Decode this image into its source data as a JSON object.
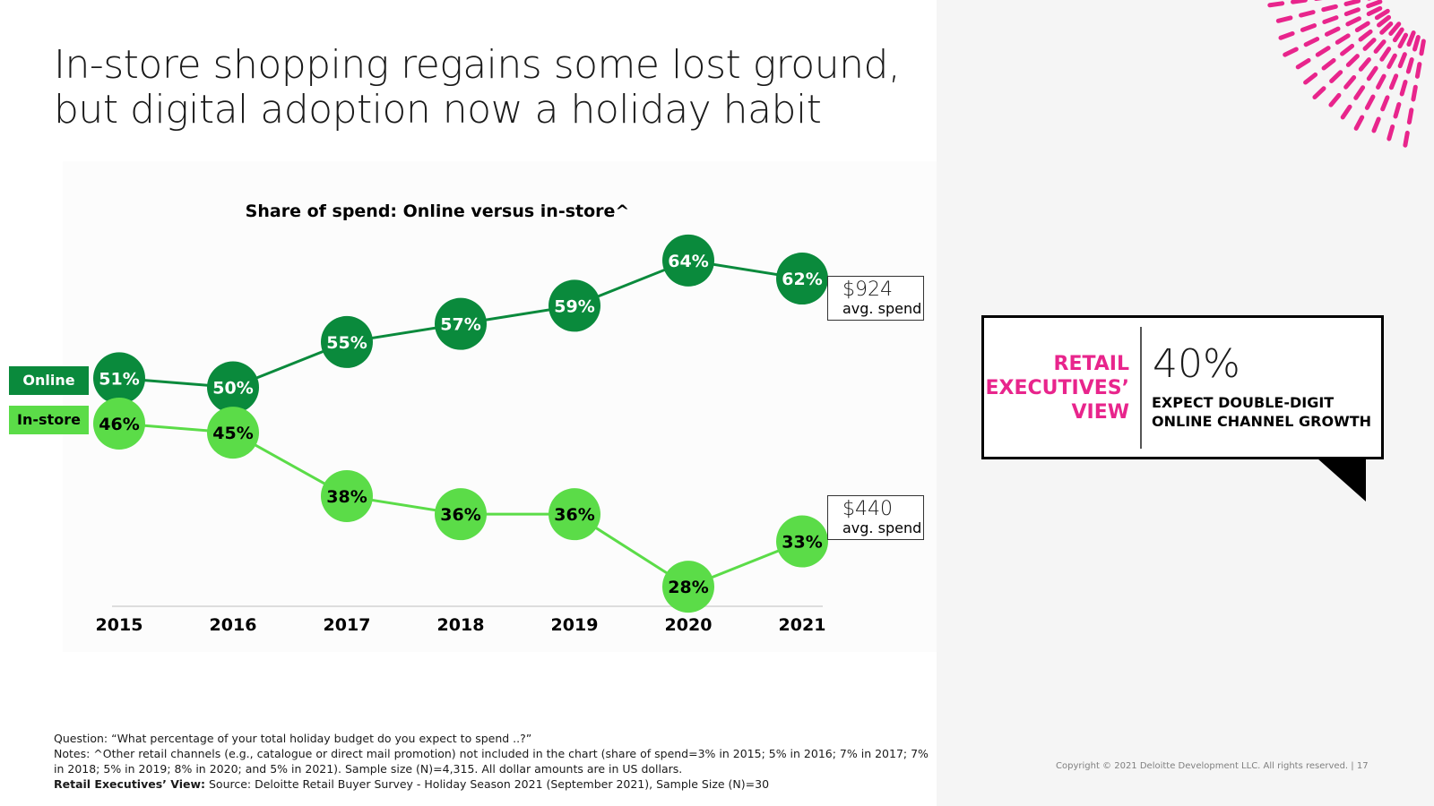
{
  "title": {
    "line1": "In-store shopping regains some lost ground,",
    "line2": "but digital adoption now a holiday habit"
  },
  "chart_data": {
    "type": "line",
    "title": "Share of spend: Online versus in-store^",
    "categories": [
      "2015",
      "2016",
      "2017",
      "2018",
      "2019",
      "2020",
      "2021"
    ],
    "series": [
      {
        "name": "Online",
        "values": [
          51,
          50,
          55,
          57,
          59,
          64,
          62
        ],
        "color": "#0a8a3c",
        "label_color": "#ffffff"
      },
      {
        "name": "In-store",
        "values": [
          46,
          45,
          38,
          36,
          36,
          28,
          33
        ],
        "color": "#5bdc48",
        "label_color": "#000000"
      }
    ],
    "value_suffix": "%",
    "xlabel": "",
    "ylabel": "",
    "grid": false,
    "legend_position": "left"
  },
  "spend": {
    "online": {
      "amount": "$924",
      "label": "avg. spend"
    },
    "instore": {
      "amount": "$440",
      "label": "avg. spend"
    }
  },
  "callout": {
    "heading_line1": "RETAIL",
    "heading_line2": "EXECUTIVES’",
    "heading_line3": "VIEW",
    "big_value": "40%",
    "text_line1": "EXPECT DOUBLE-DIGIT",
    "text_line2": "ONLINE CHANNEL GROWTH",
    "accent_color": "#e8258c"
  },
  "notes": {
    "question": "Question: “What percentage of your total holiday budget do you expect to spend ..?”",
    "notes_line1": "Notes: ^Other retail channels (e.g., catalogue or direct mail promotion) not included in the chart (share of spend=3% in 2015; 5% in 2016; 7% in 2017; 7%",
    "notes_line2": "in 2018; 5% in 2019; 8% in 2020; and 5% in 2021). Sample size (N)=4,315. All dollar amounts are in US dollars.",
    "source_label": "Retail Executives’ View:",
    "source_text": " Source: Deloitte Retail Buyer Survey - Holiday Season 2021 (September 2021), Sample Size (N)=30"
  },
  "copyright": "Copyright © 2021 Deloitte Development LLC. All rights reserved.   |    17"
}
